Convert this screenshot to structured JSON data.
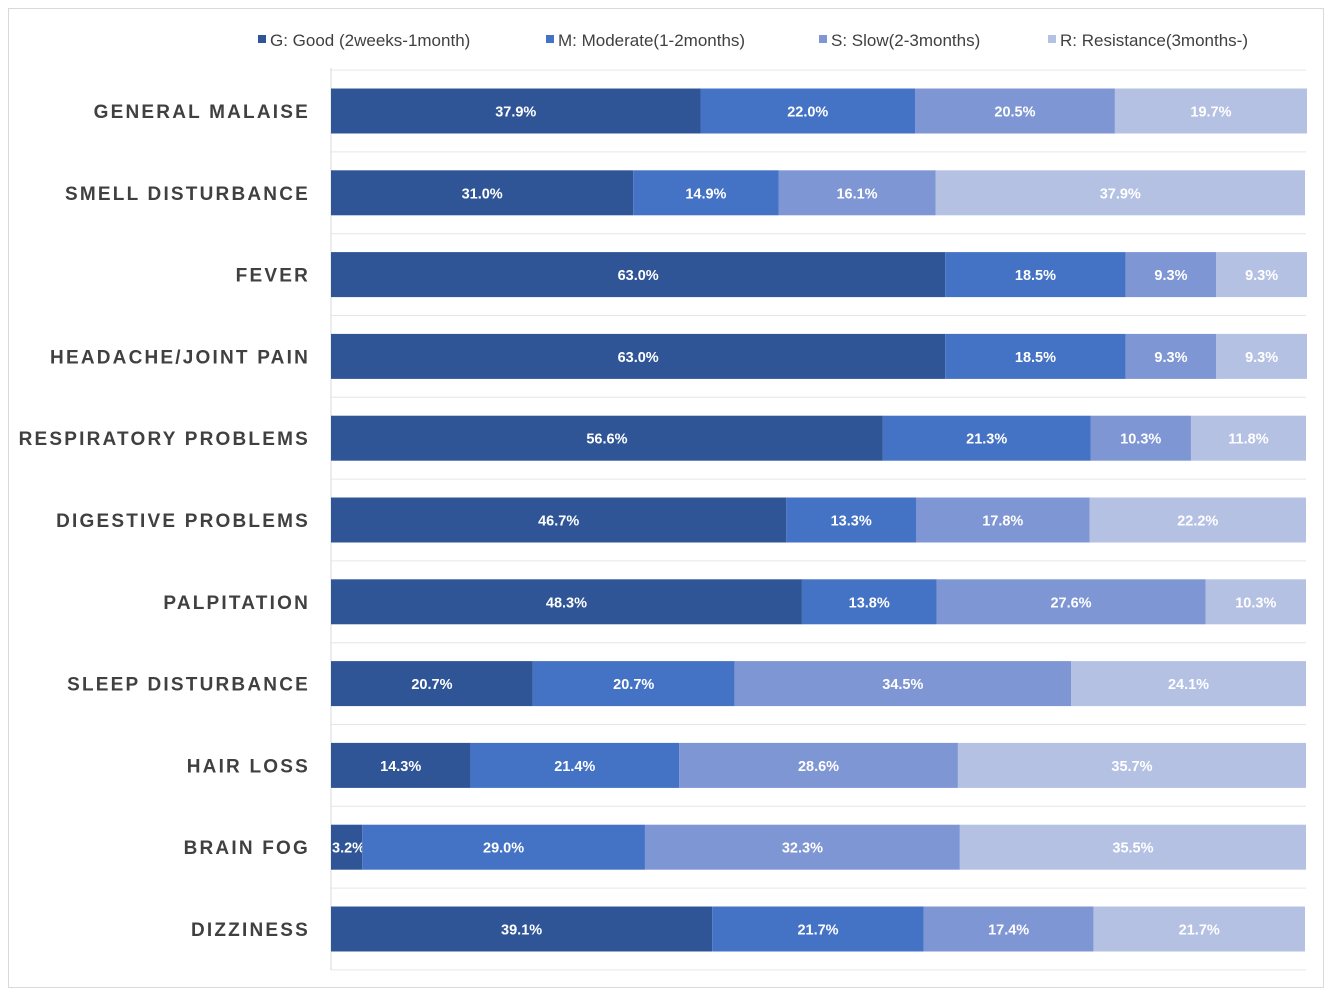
{
  "chart_data": {
    "type": "bar",
    "orientation": "horizontal",
    "stacked": true,
    "percent_stacked": true,
    "legend_position": "top",
    "grid": false,
    "xlim": [
      0,
      100
    ],
    "categories": [
      "GENERAL MALAISE",
      "SMELL DISTURBANCE",
      "FEVER",
      "HEADACHE/JOINT PAIN",
      "RESPIRATORY PROBLEMS",
      "DIGESTIVE PROBLEMS",
      "PALPITATION",
      "SLEEP DISTURBANCE",
      "HAIR LOSS",
      "BRAIN FOG",
      "DIZZINESS"
    ],
    "series": [
      {
        "name": "G: Good (2weeks-1month)",
        "color": "#2f5597",
        "values": [
          37.9,
          31.0,
          63.0,
          63.0,
          56.6,
          46.7,
          48.3,
          20.7,
          14.3,
          3.2,
          39.1
        ],
        "labels": [
          "37.9%",
          "31.0%",
          "63.0%",
          "63.0%",
          "56.6%",
          "46.7%",
          "48.3%",
          "20.7%",
          "14.3%",
          "3.2%",
          "39.1%"
        ]
      },
      {
        "name": "M: Moderate(1-2months)",
        "color": "#4472c4",
        "values": [
          22.0,
          14.9,
          18.5,
          18.5,
          21.3,
          13.3,
          13.8,
          20.7,
          21.4,
          29.0,
          21.7
        ],
        "labels": [
          "22.0%",
          "14.9%",
          "18.5%",
          "18.5%",
          "21.3%",
          "13.3%",
          "13.8%",
          "20.7%",
          "21.4%",
          "29.0%",
          "21.7%"
        ]
      },
      {
        "name": "S: Slow(2-3months)",
        "color": "#7f96d4",
        "values": [
          20.5,
          16.1,
          9.3,
          9.3,
          10.3,
          17.8,
          27.6,
          34.5,
          28.6,
          32.3,
          17.4
        ],
        "labels": [
          "20.5%",
          "16.1%",
          "9.3%",
          "9.3%",
          "10.3%",
          "17.8%",
          "27.6%",
          "34.5%",
          "28.6%",
          "32.3%",
          "17.4%"
        ]
      },
      {
        "name": "R: Resistance(3months-)",
        "color": "#b4c1e3",
        "values": [
          19.7,
          37.9,
          9.3,
          9.3,
          11.8,
          22.2,
          10.3,
          24.1,
          35.7,
          35.5,
          21.7
        ],
        "labels": [
          "19.7%",
          "37.9%",
          "9.3%",
          "9.3%",
          "11.8%",
          "22.2%",
          "10.3%",
          "24.1%",
          "35.7%",
          "35.5%",
          "21.7%"
        ]
      }
    ]
  }
}
